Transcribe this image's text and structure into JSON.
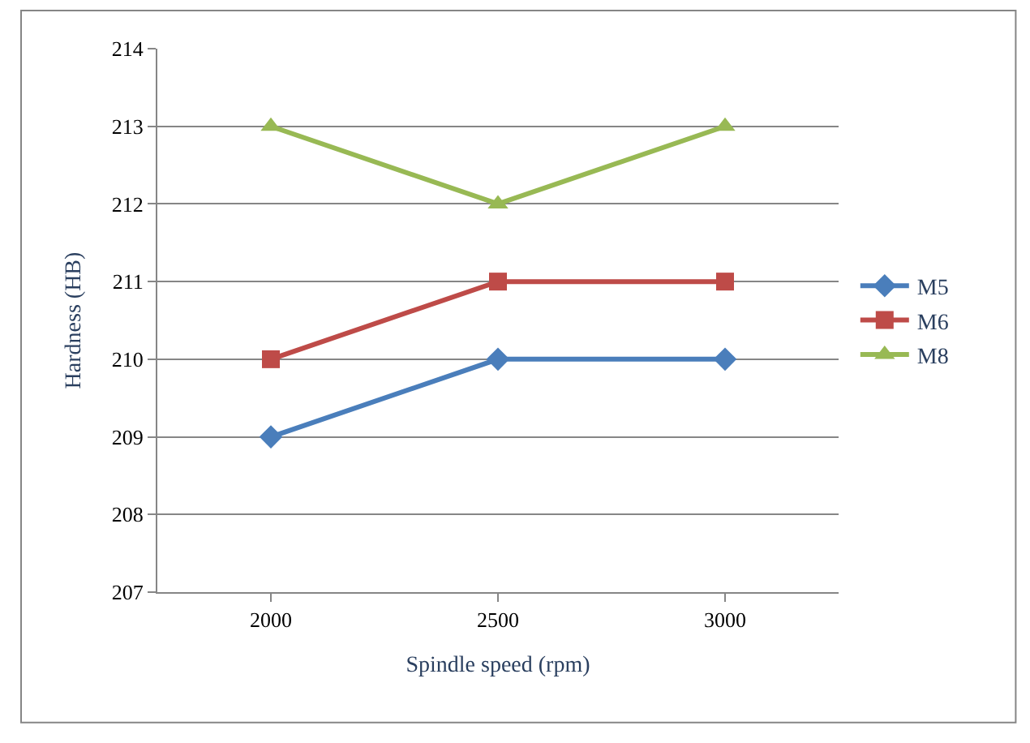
{
  "chart_data": {
    "type": "line",
    "xlabel": "Spindle speed (rpm)",
    "ylabel": "Hardness (HB)",
    "categories": [
      "2000",
      "2500",
      "3000"
    ],
    "series": [
      {
        "name": "M5",
        "color": "#4a7ebb",
        "marker": "diamond",
        "values": [
          209,
          210,
          210
        ]
      },
      {
        "name": "M6",
        "color": "#be4b48",
        "marker": "square",
        "values": [
          210,
          211,
          211
        ]
      },
      {
        "name": "M8",
        "color": "#98b954",
        "marker": "triangle",
        "values": [
          213,
          212,
          213
        ]
      }
    ],
    "ylim": [
      207,
      214
    ],
    "yticks": [
      207,
      208,
      209,
      210,
      211,
      212,
      213,
      214
    ],
    "grid": "y",
    "legend": "right",
    "line_style": "solid"
  }
}
